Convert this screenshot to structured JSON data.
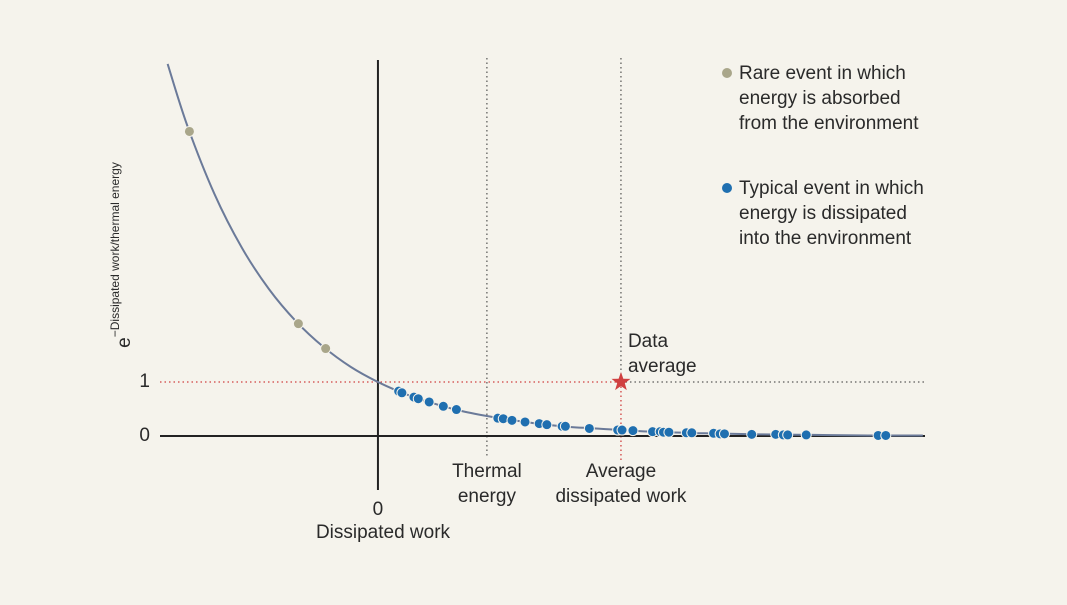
{
  "chart_data": {
    "type": "scatter",
    "x_label": "Dissipated work",
    "y_label": {
      "base": "e",
      "exponent": "−Dissipated work/thermal energy"
    },
    "xlim": [
      -2,
      5.02
    ],
    "ylim": [
      0,
      7
    ],
    "xticks": [
      0
    ],
    "yticks": [
      0,
      1
    ],
    "curve": {
      "color": "#6b7a99",
      "x": [
        -1.93,
        -1.75,
        -1.5,
        -1.25,
        -1,
        -0.75,
        -0.5,
        -0.25,
        0,
        0.25,
        0.5,
        0.75,
        1,
        1.25,
        1.5,
        1.75,
        2,
        2.5,
        3,
        3.5,
        4,
        4.5,
        5
      ],
      "values": [
        6.89,
        5.75,
        4.48,
        3.49,
        2.72,
        2.12,
        1.65,
        1.28,
        1,
        0.78,
        0.61,
        0.47,
        0.37,
        0.29,
        0.22,
        0.17,
        0.14,
        0.08,
        0.05,
        0.03,
        0.02,
        0.01,
        0.01
      ]
    },
    "series": [
      {
        "name": "Rare event in which energy is absorbed from the environment",
        "color": "#a9a68a",
        "x": [
          -1.73,
          -0.73,
          -0.48
        ],
        "values": [
          5.64,
          2.08,
          1.62
        ]
      },
      {
        "name": "Typical event in which energy is dissipated into the environment",
        "color": "#1f6fb0",
        "x": [
          0.19,
          0.22,
          0.33,
          0.37,
          0.47,
          0.6,
          0.72,
          1.1,
          1.15,
          1.23,
          1.35,
          1.48,
          1.55,
          1.69,
          1.72,
          1.94,
          2.2,
          2.24,
          2.34,
          2.52,
          2.59,
          2.62,
          2.67,
          2.83,
          2.88,
          3.08,
          3.14,
          3.18,
          3.43,
          3.65,
          3.72,
          3.76,
          3.93,
          4.59,
          4.66
        ],
        "values": [
          0.83,
          0.8,
          0.72,
          0.69,
          0.63,
          0.55,
          0.49,
          0.33,
          0.32,
          0.29,
          0.26,
          0.23,
          0.21,
          0.18,
          0.18,
          0.14,
          0.11,
          0.11,
          0.1,
          0.08,
          0.08,
          0.07,
          0.07,
          0.06,
          0.06,
          0.05,
          0.04,
          0.04,
          0.03,
          0.03,
          0.02,
          0.02,
          0.02,
          0.01,
          0.01
        ]
      }
    ],
    "thermal_energy": {
      "x": 1,
      "lines": [
        "Thermal",
        "energy"
      ]
    },
    "average": {
      "x": 2.23,
      "y": 1,
      "color": "#d04040",
      "marker_lines": [
        "Data",
        "average"
      ],
      "lines": [
        "Average",
        "dissipated work"
      ]
    }
  }
}
